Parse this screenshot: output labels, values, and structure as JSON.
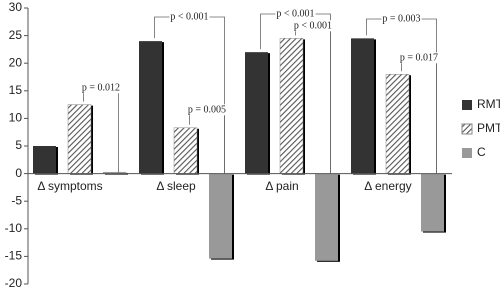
{
  "chart_data": {
    "type": "bar",
    "categories": [
      "Δ symptoms",
      "Δ sleep",
      "Δ pain",
      "Δ energy"
    ],
    "series": [
      {
        "name": "RMT",
        "color": "#333333",
        "pattern": "solid",
        "values": [
          5,
          24,
          22,
          24.5
        ]
      },
      {
        "name": "PMT",
        "color": "#555555",
        "pattern": "hatch",
        "values": [
          12.5,
          8.3,
          24.5,
          18
        ]
      },
      {
        "name": "C",
        "color": "#999999",
        "pattern": "solid",
        "values": [
          0.3,
          -15.4,
          -15.8,
          -10.5
        ]
      }
    ],
    "annotations": [
      "p = 0.012",
      "p < 0.001",
      "p = 0.005",
      "p < 0.001",
      "p < 0.001",
      "p = 0.003",
      "p = 0.017"
    ],
    "ylim": [
      -20,
      30
    ],
    "yticks": [
      -20,
      -15,
      -10,
      -5,
      0,
      5,
      10,
      15,
      20,
      25,
      30
    ],
    "grid": false,
    "legend": "right"
  }
}
